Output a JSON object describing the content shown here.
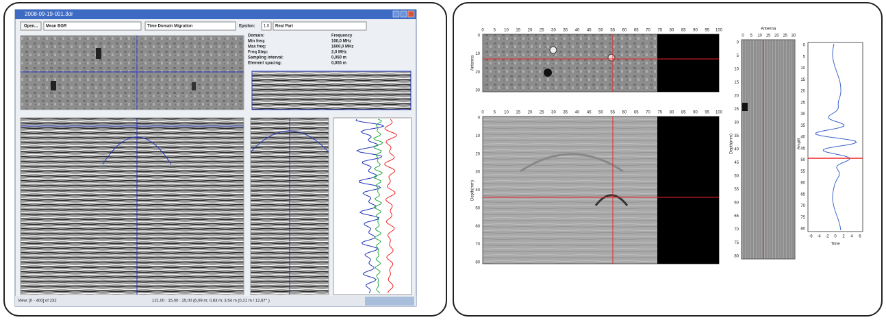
{
  "window": {
    "title": "2008-09-19-001.3dr",
    "toolbar": {
      "open": "Open...",
      "filter": "Mean BGR",
      "migration": "Time Domain Migration",
      "epsilon_label": "Epsilon:",
      "epsilon": "1.0",
      "part": "Real Part"
    },
    "info": {
      "rows": [
        [
          "Domain:",
          "Frequency"
        ],
        [
          "Min freq:",
          "100,0 MHz"
        ],
        [
          "Max freq:",
          "1600,0 MHz"
        ],
        [
          "Freq Step:",
          "2,0 MHz"
        ],
        [
          "Sampling interval:",
          "0,050 m"
        ],
        [
          "Element spacing:",
          "0,055 m"
        ]
      ]
    },
    "status": {
      "view": "View: [0 - 400] of 232",
      "cursor": "121,00 : 15,00 : 25,00 (6,09 m; 0,83 m; 3,54 m (0,21 m / 12,67° )"
    }
  },
  "analysis": {
    "top_map": {
      "y_label": "Antenna",
      "x_ticks": [
        0,
        5,
        10,
        15,
        20,
        25,
        30,
        35,
        40,
        45,
        50,
        55,
        60,
        65,
        70,
        75,
        80,
        85,
        90,
        95,
        100
      ],
      "y_ticks": [
        0,
        10,
        20,
        30
      ]
    },
    "depth_map": {
      "y_label": "Depth(mm)",
      "x_ticks": [
        0,
        5,
        10,
        15,
        20,
        25,
        30,
        35,
        40,
        45,
        50,
        55,
        60,
        65,
        70,
        75,
        80,
        85,
        90,
        95,
        100
      ],
      "y_ticks": [
        0,
        10,
        20,
        30,
        40,
        50,
        60,
        70,
        80
      ]
    },
    "antenna_plot": {
      "title": "Antenna",
      "y_label": "Depth(mm)",
      "x_ticks": [
        0,
        5,
        10,
        15,
        20,
        25,
        30
      ],
      "y_ticks": [
        0,
        5,
        10,
        15,
        20,
        25,
        30,
        35,
        40,
        45,
        50,
        55,
        60,
        65,
        70,
        75,
        80
      ]
    },
    "trace_plot": {
      "x_label": "Time",
      "y_label": "Amplit",
      "x_ticks": [
        -6,
        -4,
        -2,
        0,
        2,
        4,
        6
      ],
      "y_ticks": [
        0,
        5,
        10,
        15,
        20,
        25,
        30,
        35,
        40,
        45,
        50,
        55,
        60,
        65,
        70,
        75,
        80
      ]
    }
  }
}
